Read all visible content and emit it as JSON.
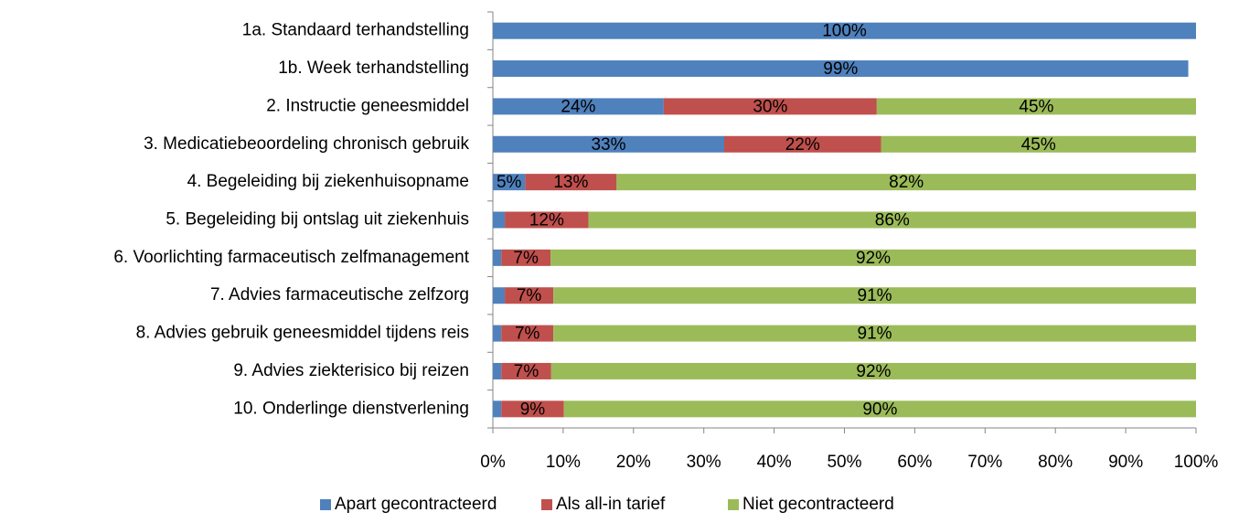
{
  "chart_data": {
    "type": "stacked-barh",
    "categories": [
      "1a. Standaard terhandstelling",
      "1b. Week terhandstelling",
      "2. Instructie geneesmiddel",
      "3. Medicatiebeoordeling chronisch gebruik",
      "4. Begeleiding bij ziekenhuisopname",
      "5. Begeleiding bij ontslag uit ziekenhuis",
      "6. Voorlichting farmaceutisch zelfmanagement",
      "7. Advies farmaceutische zelfzorg",
      "8. Advies gebruik geneesmiddel tijdens reis",
      "9. Advies ziekterisico bij reizen",
      "10. Onderlinge dienstverlening"
    ],
    "series": [
      {
        "name": "Apart gecontracteerd",
        "color": "#4f81bd",
        "values": [
          100,
          98.9,
          24.3,
          32.9,
          4.6,
          1.7,
          1.2,
          1.7,
          1.2,
          1.2,
          1.2
        ],
        "value_labels": [
          "100%",
          "99%",
          "24%",
          "33%",
          "5%",
          null,
          null,
          null,
          null,
          null,
          null
        ]
      },
      {
        "name": "Als all-in tarief",
        "color": "#c0504d",
        "values": [
          0,
          0,
          30.3,
          22.3,
          13,
          11.9,
          7,
          6.9,
          7.4,
          7.1,
          8.9
        ],
        "value_labels": [
          null,
          null,
          "30%",
          "22%",
          "13%",
          "12%",
          "7%",
          "7%",
          "7%",
          "7%",
          "9%"
        ]
      },
      {
        "name": "Niet gecontracteerd",
        "color": "#9bbb59",
        "values": [
          0,
          0,
          45.4,
          44.8,
          82.4,
          86.4,
          91.8,
          91.4,
          91.4,
          91.7,
          89.9
        ],
        "value_labels": [
          null,
          null,
          "45%",
          "45%",
          "82%",
          "86%",
          "92%",
          "91%",
          "91%",
          "92%",
          "90%"
        ]
      }
    ],
    "xlim": [
      0,
      100
    ],
    "xticks": [
      {
        "value": 0,
        "label": "0%"
      },
      {
        "value": 10,
        "label": "10%"
      },
      {
        "value": 20,
        "label": "20%"
      },
      {
        "value": 30,
        "label": "30%"
      },
      {
        "value": 40,
        "label": "40%"
      },
      {
        "value": 50,
        "label": "50%"
      },
      {
        "value": 60,
        "label": "60%"
      },
      {
        "value": 70,
        "label": "70%"
      },
      {
        "value": 80,
        "label": "80%"
      },
      {
        "value": 90,
        "label": "90%"
      },
      {
        "value": 100,
        "label": "100%"
      }
    ],
    "legend": "bottom"
  }
}
